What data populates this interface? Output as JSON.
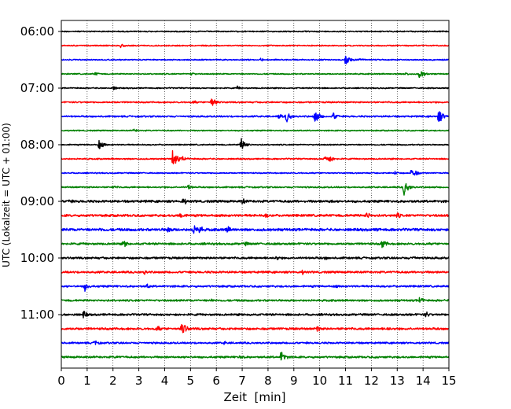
{
  "chart_data": {
    "type": "line",
    "subtype": "helicorder",
    "xlabel": "Zeit  [min]",
    "ylabel": "UTC (Lokalzeit = UTC + 01:00)",
    "xlim": [
      0,
      15
    ],
    "x_ticks": [
      "0",
      "1",
      "2",
      "3",
      "4",
      "5",
      "6",
      "7",
      "8",
      "9",
      "10",
      "11",
      "12",
      "13",
      "14",
      "15"
    ],
    "y_ticks": [
      "06:00",
      "07:00",
      "08:00",
      "09:00",
      "10:00",
      "11:00"
    ],
    "grid": "vertical dotted lines at each minute",
    "trace_interval_minutes": 15,
    "colors": [
      "#000000",
      "#ff0000",
      "#0000ff",
      "#008000"
    ],
    "traces": [
      {
        "start": "06:00",
        "color": "#000000",
        "noise": 0.8,
        "events": []
      },
      {
        "start": "06:15",
        "color": "#ff0000",
        "noise": 0.8,
        "events": [
          [
            2.3,
            3
          ]
        ]
      },
      {
        "start": "06:30",
        "color": "#0000ff",
        "noise": 0.8,
        "events": [
          [
            11.0,
            8
          ],
          [
            7.7,
            3
          ],
          [
            11.5,
            3
          ]
        ]
      },
      {
        "start": "06:45",
        "color": "#008000",
        "noise": 0.8,
        "events": [
          [
            13.85,
            8
          ],
          [
            1.3,
            3
          ],
          [
            5.0,
            3
          ],
          [
            13.3,
            3
          ]
        ]
      },
      {
        "start": "07:00",
        "color": "#000000",
        "noise": 0.8,
        "events": [
          [
            2.0,
            3
          ],
          [
            6.8,
            3
          ]
        ]
      },
      {
        "start": "07:15",
        "color": "#ff0000",
        "noise": 1.0,
        "events": [
          [
            5.8,
            9
          ],
          [
            5.1,
            3
          ]
        ]
      },
      {
        "start": "07:30",
        "color": "#0000ff",
        "noise": 1.1,
        "events": [
          [
            8.7,
            9
          ],
          [
            9.8,
            11
          ],
          [
            10.5,
            7
          ],
          [
            14.6,
            11
          ],
          [
            8.4,
            4
          ]
        ]
      },
      {
        "start": "07:45",
        "color": "#008000",
        "noise": 0.8,
        "events": [
          [
            2.8,
            3
          ]
        ]
      },
      {
        "start": "08:00",
        "color": "#000000",
        "noise": 0.8,
        "events": [
          [
            1.45,
            7
          ],
          [
            6.95,
            10
          ]
        ]
      },
      {
        "start": "08:15",
        "color": "#ff0000",
        "noise": 0.9,
        "events": [
          [
            4.3,
            13
          ],
          [
            4.7,
            4
          ],
          [
            10.2,
            7
          ],
          [
            10.4,
            5
          ]
        ]
      },
      {
        "start": "08:30",
        "color": "#0000ff",
        "noise": 0.8,
        "events": [
          [
            13.55,
            9
          ],
          [
            12.9,
            3
          ]
        ]
      },
      {
        "start": "08:45",
        "color": "#008000",
        "noise": 1.0,
        "events": [
          [
            13.25,
            12
          ],
          [
            4.9,
            4
          ],
          [
            2.0,
            3
          ]
        ]
      },
      {
        "start": "09:00",
        "color": "#000000",
        "noise": 1.6,
        "events": [
          [
            4.7,
            6
          ],
          [
            7.0,
            5
          ],
          [
            0.3,
            4
          ],
          [
            10.4,
            4
          ]
        ]
      },
      {
        "start": "09:15",
        "color": "#ff0000",
        "noise": 1.6,
        "events": [
          [
            4.6,
            6
          ],
          [
            11.8,
            6
          ],
          [
            13.0,
            5
          ],
          [
            7.9,
            4
          ]
        ]
      },
      {
        "start": "09:30",
        "color": "#0000ff",
        "noise": 1.8,
        "events": [
          [
            5.1,
            8
          ],
          [
            5.3,
            8
          ],
          [
            4.1,
            6
          ],
          [
            6.4,
            6
          ],
          [
            1.5,
            4
          ],
          [
            12.2,
            4
          ]
        ]
      },
      {
        "start": "09:45",
        "color": "#008000",
        "noise": 1.4,
        "events": [
          [
            2.4,
            6
          ],
          [
            12.4,
            8
          ],
          [
            7.1,
            4
          ]
        ]
      },
      {
        "start": "10:00",
        "color": "#000000",
        "noise": 1.4,
        "events": [
          [
            8.3,
            4
          ],
          [
            10.2,
            3
          ],
          [
            13.6,
            4
          ]
        ]
      },
      {
        "start": "10:15",
        "color": "#ff0000",
        "noise": 1.4,
        "events": [
          [
            3.2,
            4
          ],
          [
            9.3,
            4
          ]
        ]
      },
      {
        "start": "10:30",
        "color": "#0000ff",
        "noise": 1.3,
        "events": [
          [
            0.9,
            7
          ],
          [
            3.3,
            4
          ],
          [
            10.6,
            3
          ]
        ]
      },
      {
        "start": "10:45",
        "color": "#008000",
        "noise": 1.3,
        "events": [
          [
            13.85,
            6
          ],
          [
            5.8,
            3
          ]
        ]
      },
      {
        "start": "11:00",
        "color": "#000000",
        "noise": 1.4,
        "events": [
          [
            0.85,
            6
          ],
          [
            14.1,
            5
          ],
          [
            7.3,
            3
          ]
        ]
      },
      {
        "start": "11:15",
        "color": "#ff0000",
        "noise": 1.5,
        "events": [
          [
            4.65,
            12
          ],
          [
            3.7,
            5
          ],
          [
            9.9,
            5
          ],
          [
            12.6,
            4
          ]
        ]
      },
      {
        "start": "11:30",
        "color": "#0000ff",
        "noise": 1.2,
        "events": [
          [
            1.3,
            5
          ],
          [
            6.3,
            3
          ]
        ]
      },
      {
        "start": "11:45",
        "color": "#008000",
        "noise": 1.3,
        "events": [
          [
            8.5,
            9
          ],
          [
            6.9,
            4
          ],
          [
            2.1,
            3
          ]
        ]
      }
    ]
  }
}
